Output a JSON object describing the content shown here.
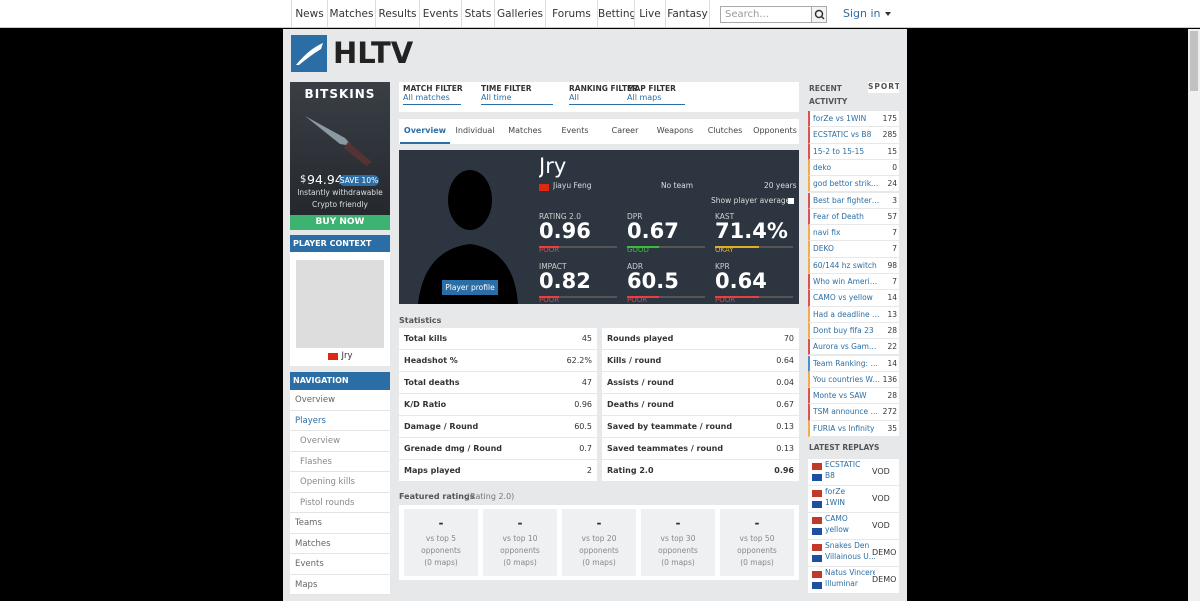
{
  "nav": {
    "items": [
      "News",
      "Matches",
      "Results",
      "Events",
      "Stats",
      "Galleries",
      "Forums",
      "Betting",
      "Live",
      "Fantasy"
    ],
    "search_placeholder": "Search...",
    "sign_in": "Sign in"
  },
  "logo": "HLTV",
  "ad": {
    "brand": "BITSKINS",
    "currency": "$",
    "price": "94.94",
    "save": "SAVE 10%",
    "features": [
      "Instantly withdrawable",
      "Crypto friendly"
    ],
    "button": "BUY NOW"
  },
  "player_context": {
    "title": "PLAYER CONTEXT",
    "name": "Jry"
  },
  "navigation": {
    "title": "NAVIGATION",
    "items": [
      {
        "text": "Overview",
        "level": 0
      },
      {
        "text": "Players",
        "level": 0,
        "active": true
      },
      {
        "text": "Overview",
        "level": 1
      },
      {
        "text": "Flashes",
        "level": 1
      },
      {
        "text": "Opening kills",
        "level": 1
      },
      {
        "text": "Pistol rounds",
        "level": 1
      },
      {
        "text": "Teams",
        "level": 0
      },
      {
        "text": "Matches",
        "level": 0
      },
      {
        "text": "Events",
        "level": 0
      },
      {
        "text": "Maps",
        "level": 0
      }
    ]
  },
  "filters": [
    {
      "label": "MATCH FILTER",
      "value": "All matches"
    },
    {
      "label": "TIME FILTER",
      "value": "All time"
    },
    {
      "label": "RANKING FILTER",
      "value": "All"
    },
    {
      "label": "MAP FILTER",
      "value": "All maps"
    }
  ],
  "tabs": [
    "Overview",
    "Individual",
    "Matches",
    "Events",
    "Career",
    "Weapons",
    "Clutches",
    "Opponents"
  ],
  "player": {
    "nickname": "Jry",
    "real_name": "Jiayu Feng",
    "team": "No team",
    "age": "20 years",
    "show_average": "Show player average",
    "profile_button": "Player profile",
    "stats": [
      {
        "label": "RATING 2.0",
        "value": "0.96",
        "grade": "POOR",
        "color": "#e84040"
      },
      {
        "label": "DPR",
        "value": "0.67",
        "grade": "GOOD",
        "color": "#3cba3c"
      },
      {
        "label": "KAST",
        "value": "71.4%",
        "grade": "OKAY",
        "color": "#e0b020"
      },
      {
        "label": "IMPACT",
        "value": "0.82",
        "grade": "POOR",
        "color": "#e84040"
      },
      {
        "label": "ADR",
        "value": "60.5",
        "grade": "POOR",
        "color": "#e84040"
      },
      {
        "label": "KPR",
        "value": "0.64",
        "grade": "POOR",
        "color": "#e84040"
      }
    ]
  },
  "statistics": {
    "title": "Statistics",
    "left": [
      [
        "Total kills",
        "45"
      ],
      [
        "Headshot %",
        "62.2%"
      ],
      [
        "Total deaths",
        "47"
      ],
      [
        "K/D Ratio",
        "0.96"
      ],
      [
        "Damage / Round",
        "60.5"
      ],
      [
        "Grenade dmg / Round",
        "0.7"
      ],
      [
        "Maps played",
        "2"
      ]
    ],
    "right": [
      [
        "Rounds played",
        "70"
      ],
      [
        "Kills / round",
        "0.64"
      ],
      [
        "Assists / round",
        "0.04"
      ],
      [
        "Deaths / round",
        "0.67"
      ],
      [
        "Saved by teammate / round",
        "0.13"
      ],
      [
        "Saved teammates / round",
        "0.13"
      ],
      [
        "Rating 2.0",
        "0.96"
      ]
    ]
  },
  "featured": {
    "title": "Featured ratings",
    "subtitle": "(Rating 2.0)",
    "cards": [
      {
        "value": "-",
        "label": "vs top 5 opponents",
        "maps": "(0 maps)"
      },
      {
        "value": "-",
        "label": "vs top 10 opponents",
        "maps": "(0 maps)"
      },
      {
        "value": "-",
        "label": "vs top 20 opponents",
        "maps": "(0 maps)"
      },
      {
        "value": "-",
        "label": "vs top 30 opponents",
        "maps": "(0 maps)"
      },
      {
        "value": "-",
        "label": "vs top 50 opponents",
        "maps": "(0 maps)"
      }
    ]
  },
  "recent": {
    "title": "RECENT ACTIVITY",
    "sport": "SPORT",
    "items": [
      {
        "text": "forZe vs 1WIN",
        "count": 175,
        "color": "#d9534f"
      },
      {
        "text": "ECSTATIC vs B8",
        "count": 285,
        "color": "#d9534f"
      },
      {
        "text": "15-2 to 15-15",
        "count": 15,
        "color": "#d9534f"
      },
      {
        "text": "deko",
        "count": 0,
        "color": "#f0ad4e"
      },
      {
        "text": "god bettor strikes ...",
        "count": 24,
        "color": "#f0ad4e"
      },
      {
        "text": "Best bar fighter cou...",
        "count": 3,
        "color": "#d9534f"
      },
      {
        "text": "Fear of Death",
        "count": 57,
        "color": "#d9534f"
      },
      {
        "text": "navi fix",
        "count": 7,
        "color": "#f0ad4e"
      },
      {
        "text": "DEKO",
        "count": 7,
        "color": "#f0ad4e"
      },
      {
        "text": "60/144 hz switch",
        "count": 98,
        "color": "#f0ad4e"
      },
      {
        "text": "Who win Americas R...",
        "count": 7,
        "color": "#d9534f"
      },
      {
        "text": "CAMO vs yellow",
        "count": 14,
        "color": "#d9534f"
      },
      {
        "text": "Had a deadline tod...",
        "count": 13,
        "color": "#f0ad4e"
      },
      {
        "text": "Dont buy fifa 23",
        "count": 28,
        "color": "#f0ad4e"
      },
      {
        "text": "Aurora vs GamerLe...",
        "count": 22,
        "color": "#d9534f"
      },
      {
        "text": "Team Ranking: Sep...",
        "count": 14,
        "color": "#4a90c8"
      },
      {
        "text": "You countries Wars",
        "count": 136,
        "color": "#f0ad4e"
      },
      {
        "text": "Monte vs SAW",
        "count": 28,
        "color": "#d9534f"
      },
      {
        "text": "TSM announce 20...",
        "count": 272,
        "color": "#d9534f"
      },
      {
        "text": "FURIA vs Infinity",
        "count": 35,
        "color": "#f0ad4e"
      }
    ]
  },
  "replays": {
    "title": "LATEST REPLAYS",
    "items": [
      {
        "team1": "ECSTATIC",
        "team2": "B8",
        "type": "VOD"
      },
      {
        "team1": "forZe",
        "team2": "1WIN",
        "type": "VOD"
      },
      {
        "team1": "CAMO",
        "team2": "yellow",
        "type": "VOD"
      },
      {
        "team1": "Snakes Den",
        "team2": "Villainous U...",
        "type": "DEMO"
      },
      {
        "team1": "Natus Vincere",
        "team2": "Illuminar",
        "type": "DEMO"
      }
    ]
  }
}
